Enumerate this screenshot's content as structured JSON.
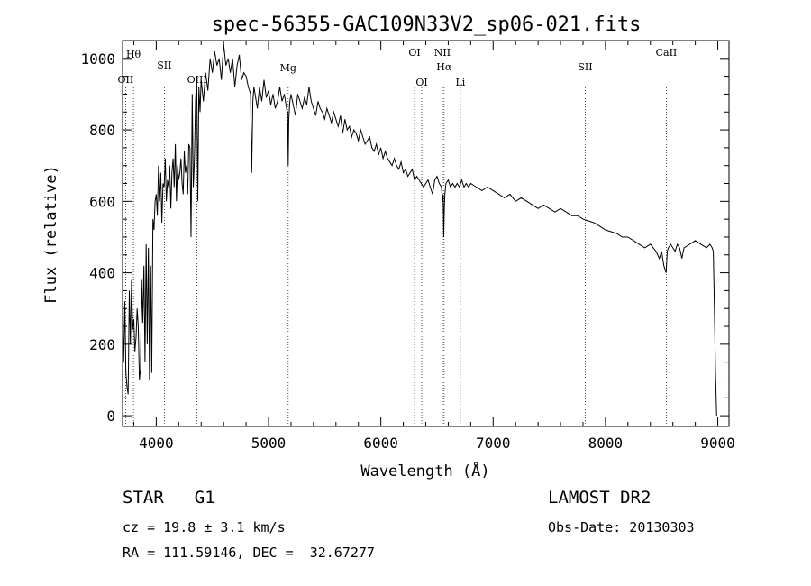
{
  "chart_data": {
    "type": "line",
    "title": "spec-56355-GAC109N33V2_sp06-021.fits",
    "xlabel": "Wavelength (Å)",
    "ylabel": "Flux (relative)",
    "xlim": [
      3700,
      9100
    ],
    "ylim": [
      -30,
      1050
    ],
    "x_ticks": [
      4000,
      5000,
      6000,
      7000,
      8000,
      9000
    ],
    "x_tick_labels": [
      "4000",
      "5000",
      "6000",
      "7000",
      "8000",
      "9000"
    ],
    "y_ticks": [
      0,
      200,
      400,
      600,
      800,
      1000
    ],
    "y_tick_labels": [
      "0",
      "200",
      "400",
      "600",
      "800",
      "1000"
    ],
    "grid": false,
    "legend": "none",
    "series": [
      {
        "values_x": [
          3700,
          3710,
          3720,
          3730,
          3740,
          3750,
          3760,
          3770,
          3780,
          3790,
          3800,
          3810,
          3820,
          3830,
          3840,
          3850,
          3860,
          3870,
          3880,
          3890,
          3900,
          3910,
          3920,
          3930,
          3940,
          3950,
          3960,
          3970,
          3980,
          3990,
          4000,
          4010,
          4020,
          4030,
          4040,
          4050,
          4060,
          4070,
          4080,
          4090,
          4100,
          4110,
          4120,
          4130,
          4140,
          4150,
          4160,
          4170,
          4180,
          4190,
          4200,
          4210,
          4220,
          4230,
          4240,
          4250,
          4260,
          4270,
          4280,
          4290,
          4300,
          4310,
          4320,
          4330,
          4340,
          4350,
          4360,
          4370,
          4380,
          4390,
          4400,
          4420,
          4440,
          4460,
          4480,
          4500,
          4520,
          4540,
          4560,
          4580,
          4600,
          4620,
          4640,
          4660,
          4680,
          4700,
          4720,
          4740,
          4760,
          4780,
          4800,
          4820,
          4840,
          4850,
          4860,
          4870,
          4880,
          4900,
          4920,
          4940,
          4960,
          4980,
          5000,
          5020,
          5040,
          5060,
          5080,
          5100,
          5120,
          5140,
          5160,
          5170,
          5175,
          5180,
          5190,
          5200,
          5220,
          5240,
          5260,
          5280,
          5300,
          5320,
          5340,
          5360,
          5380,
          5400,
          5420,
          5440,
          5460,
          5480,
          5500,
          5520,
          5540,
          5560,
          5580,
          5600,
          5620,
          5640,
          5660,
          5680,
          5700,
          5720,
          5740,
          5760,
          5780,
          5800,
          5820,
          5840,
          5860,
          5880,
          5900,
          5920,
          5940,
          5960,
          5980,
          6000,
          6020,
          6040,
          6060,
          6080,
          6100,
          6120,
          6140,
          6160,
          6180,
          6200,
          6220,
          6240,
          6260,
          6280,
          6300,
          6320,
          6340,
          6360,
          6380,
          6400,
          6420,
          6440,
          6460,
          6480,
          6500,
          6520,
          6540,
          6550,
          6555,
          6560,
          6565,
          6570,
          6580,
          6600,
          6620,
          6640,
          6660,
          6680,
          6700,
          6720,
          6740,
          6760,
          6780,
          6800,
          6850,
          6900,
          6950,
          7000,
          7050,
          7100,
          7150,
          7200,
          7250,
          7300,
          7350,
          7400,
          7450,
          7500,
          7550,
          7600,
          7650,
          7700,
          7750,
          7800,
          7850,
          7900,
          7950,
          8000,
          8050,
          8100,
          8150,
          8200,
          8250,
          8300,
          8350,
          8400,
          8450,
          8480,
          8500,
          8520,
          8540,
          8550,
          8560,
          8580,
          8600,
          8620,
          8640,
          8660,
          8680,
          8700,
          8750,
          8800,
          8850,
          8900,
          8930,
          8950,
          8960,
          8970,
          8980,
          8990
        ],
        "values_y": [
          280,
          150,
          320,
          120,
          80,
          60,
          350,
          200,
          380,
          240,
          270,
          180,
          220,
          300,
          250,
          100,
          130,
          380,
          260,
          420,
          150,
          480,
          200,
          470,
          100,
          420,
          120,
          550,
          520,
          600,
          620,
          560,
          700,
          600,
          680,
          540,
          650,
          640,
          720,
          600,
          660,
          640,
          700,
          580,
          680,
          720,
          640,
          760,
          600,
          700,
          660,
          680,
          720,
          650,
          620,
          740,
          680,
          700,
          620,
          760,
          750,
          500,
          900,
          640,
          720,
          880,
          950,
          600,
          920,
          850,
          940,
          880,
          960,
          910,
          1000,
          960,
          1020,
          980,
          1000,
          940,
          1040,
          980,
          1000,
          960,
          1000,
          920,
          980,
          1010,
          940,
          960,
          950,
          920,
          900,
          680,
          880,
          920,
          900,
          860,
          920,
          880,
          940,
          890,
          910,
          870,
          900,
          860,
          880,
          920,
          880,
          900,
          860,
          850,
          700,
          830,
          880,
          900,
          870,
          840,
          900,
          880,
          860,
          890,
          870,
          920,
          880,
          860,
          840,
          880,
          860,
          850,
          830,
          860,
          840,
          820,
          850,
          830,
          810,
          840,
          790,
          830,
          800,
          810,
          780,
          800,
          790,
          770,
          800,
          780,
          760,
          770,
          780,
          750,
          740,
          760,
          730,
          750,
          720,
          740,
          720,
          710,
          700,
          720,
          700,
          690,
          710,
          680,
          690,
          670,
          680,
          690,
          660,
          670,
          660,
          650,
          640,
          650,
          660,
          640,
          620,
          660,
          670,
          650,
          640,
          600,
          620,
          500,
          580,
          620,
          650,
          660,
          640,
          650,
          640,
          650,
          640,
          660,
          640,
          650,
          640,
          650,
          640,
          630,
          640,
          630,
          620,
          610,
          620,
          600,
          610,
          600,
          590,
          580,
          590,
          580,
          570,
          580,
          570,
          560,
          560,
          550,
          545,
          540,
          530,
          520,
          515,
          510,
          500,
          500,
          490,
          480,
          470,
          480,
          460,
          440,
          460,
          420,
          400,
          460,
          470,
          480,
          470,
          460,
          480,
          470,
          440,
          470,
          480,
          490,
          480,
          470,
          480,
          470,
          460,
          300,
          120,
          0
        ]
      }
    ],
    "line_markers": [
      {
        "label": "OII",
        "x": 3727
      },
      {
        "label": "Hθ",
        "x": 3797
      },
      {
        "label": "SII",
        "x": 4072
      },
      {
        "label": "OIII",
        "x": 4363
      },
      {
        "label": "Mg",
        "x": 5175
      },
      {
        "label": "OI",
        "x": 6300
      },
      {
        "label": "OI",
        "x": 6364
      },
      {
        "label": "NII",
        "x": 6548
      },
      {
        "label": "Hα",
        "x": 6563
      },
      {
        "label": "Li",
        "x": 6708
      },
      {
        "label": "SII",
        "x": 7820
      },
      {
        "label": "CaII",
        "x": 8542
      }
    ]
  },
  "info": {
    "class_label": "STAR",
    "subclass_label": "G1",
    "cz_text": "cz = 19.8 ± 3.1 km/s",
    "radec_text": "RA = 111.59146, DEC =  32.67277",
    "survey_label": "LAMOST DR2",
    "obsdate_text": "Obs-Date: 20130303"
  }
}
